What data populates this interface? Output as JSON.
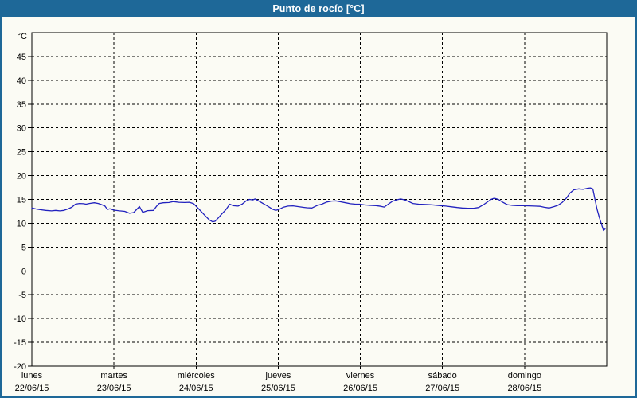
{
  "header": {
    "title": "Punto de rocío [°C]",
    "bg_color": "#1e6898",
    "text_color": "#ffffff"
  },
  "chart_data": {
    "type": "line",
    "title": "Punto de rocío [°C]",
    "grid": "dashed",
    "legend": "none",
    "y_axis": {
      "unit_label": "°C",
      "min": -20,
      "max": 50,
      "tick_step": 5,
      "ticks": [
        45,
        40,
        35,
        30,
        25,
        20,
        15,
        10,
        5,
        0,
        -5,
        -10,
        -15,
        -20
      ]
    },
    "x_axis": {
      "span_days": 7,
      "days": [
        {
          "name": "lunes",
          "date": "22/06/15"
        },
        {
          "name": "martes",
          "date": "23/06/15"
        },
        {
          "name": "miércoles",
          "date": "24/06/15"
        },
        {
          "name": "jueves",
          "date": "25/06/15"
        },
        {
          "name": "viernes",
          "date": "26/06/15"
        },
        {
          "name": "sábado",
          "date": "27/06/15"
        },
        {
          "name": "domingo",
          "date": "28/06/15"
        }
      ]
    },
    "series": [
      {
        "name": "Punto de rocío",
        "color": "#2121be",
        "points": [
          [
            0.0,
            13.2
          ],
          [
            0.05,
            13.0
          ],
          [
            0.1,
            12.85
          ],
          [
            0.17,
            12.7
          ],
          [
            0.24,
            12.6
          ],
          [
            0.29,
            12.7
          ],
          [
            0.34,
            12.6
          ],
          [
            0.39,
            12.7
          ],
          [
            0.44,
            13.0
          ],
          [
            0.49,
            13.4
          ],
          [
            0.53,
            14.0
          ],
          [
            0.58,
            14.15
          ],
          [
            0.63,
            14.1
          ],
          [
            0.66,
            14.0
          ],
          [
            0.7,
            14.15
          ],
          [
            0.76,
            14.3
          ],
          [
            0.81,
            14.15
          ],
          [
            0.85,
            13.9
          ],
          [
            0.89,
            13.6
          ],
          [
            0.92,
            12.9
          ],
          [
            0.95,
            13.05
          ],
          [
            1.0,
            12.75
          ],
          [
            1.07,
            12.6
          ],
          [
            1.13,
            12.5
          ],
          [
            1.19,
            12.1
          ],
          [
            1.24,
            12.25
          ],
          [
            1.31,
            13.5
          ],
          [
            1.35,
            12.3
          ],
          [
            1.41,
            12.65
          ],
          [
            1.48,
            12.7
          ],
          [
            1.52,
            13.6
          ],
          [
            1.55,
            14.15
          ],
          [
            1.6,
            14.3
          ],
          [
            1.67,
            14.35
          ],
          [
            1.72,
            14.55
          ],
          [
            1.79,
            14.4
          ],
          [
            1.86,
            14.35
          ],
          [
            1.92,
            14.4
          ],
          [
            1.97,
            14.1
          ],
          [
            2.01,
            13.4
          ],
          [
            2.06,
            12.5
          ],
          [
            2.11,
            11.6
          ],
          [
            2.16,
            10.7
          ],
          [
            2.2,
            10.3
          ],
          [
            2.23,
            10.4
          ],
          [
            2.27,
            11.1
          ],
          [
            2.31,
            11.9
          ],
          [
            2.36,
            12.8
          ],
          [
            2.41,
            14.0
          ],
          [
            2.45,
            13.7
          ],
          [
            2.51,
            13.6
          ],
          [
            2.56,
            14.0
          ],
          [
            2.61,
            14.7
          ],
          [
            2.65,
            15.0
          ],
          [
            2.69,
            14.9
          ],
          [
            2.72,
            15.1
          ],
          [
            2.77,
            14.6
          ],
          [
            2.82,
            14.1
          ],
          [
            2.88,
            13.5
          ],
          [
            2.93,
            12.95
          ],
          [
            2.97,
            12.7
          ],
          [
            3.01,
            12.9
          ],
          [
            3.06,
            13.35
          ],
          [
            3.12,
            13.6
          ],
          [
            3.18,
            13.65
          ],
          [
            3.24,
            13.5
          ],
          [
            3.3,
            13.35
          ],
          [
            3.35,
            13.25
          ],
          [
            3.41,
            13.2
          ],
          [
            3.47,
            13.7
          ],
          [
            3.53,
            14.0
          ],
          [
            3.59,
            14.45
          ],
          [
            3.65,
            14.65
          ],
          [
            3.7,
            14.7
          ],
          [
            3.76,
            14.5
          ],
          [
            3.82,
            14.3
          ],
          [
            3.88,
            14.1
          ],
          [
            3.94,
            14.0
          ],
          [
            3.99,
            14.0
          ],
          [
            4.05,
            13.85
          ],
          [
            4.12,
            13.75
          ],
          [
            4.19,
            13.7
          ],
          [
            4.25,
            13.55
          ],
          [
            4.29,
            13.4
          ],
          [
            4.34,
            14.0
          ],
          [
            4.39,
            14.6
          ],
          [
            4.44,
            14.9
          ],
          [
            4.49,
            15.1
          ],
          [
            4.54,
            14.9
          ],
          [
            4.59,
            14.55
          ],
          [
            4.64,
            14.15
          ],
          [
            4.71,
            14.0
          ],
          [
            4.78,
            13.95
          ],
          [
            4.85,
            13.9
          ],
          [
            4.91,
            13.8
          ],
          [
            4.97,
            13.7
          ],
          [
            5.04,
            13.6
          ],
          [
            5.11,
            13.45
          ],
          [
            5.18,
            13.3
          ],
          [
            5.24,
            13.2
          ],
          [
            5.31,
            13.15
          ],
          [
            5.38,
            13.15
          ],
          [
            5.44,
            13.3
          ],
          [
            5.5,
            13.9
          ],
          [
            5.55,
            14.5
          ],
          [
            5.59,
            15.0
          ],
          [
            5.63,
            15.25
          ],
          [
            5.68,
            15.0
          ],
          [
            5.73,
            14.45
          ],
          [
            5.79,
            13.9
          ],
          [
            5.85,
            13.75
          ],
          [
            5.91,
            13.7
          ],
          [
            5.98,
            13.7
          ],
          [
            6.05,
            13.65
          ],
          [
            6.12,
            13.6
          ],
          [
            6.19,
            13.55
          ],
          [
            6.24,
            13.35
          ],
          [
            6.3,
            13.2
          ],
          [
            6.36,
            13.5
          ],
          [
            6.41,
            13.8
          ],
          [
            6.46,
            14.4
          ],
          [
            6.51,
            15.3
          ],
          [
            6.55,
            16.3
          ],
          [
            6.6,
            17.0
          ],
          [
            6.66,
            17.2
          ],
          [
            6.71,
            17.1
          ],
          [
            6.76,
            17.3
          ],
          [
            6.8,
            17.4
          ],
          [
            6.83,
            17.2
          ],
          [
            6.85,
            15.6
          ],
          [
            6.88,
            13.1
          ],
          [
            6.91,
            11.2
          ],
          [
            6.94,
            9.6
          ],
          [
            6.96,
            8.5
          ],
          [
            6.98,
            8.8
          ]
        ]
      }
    ],
    "colors": {
      "grid": "#000000",
      "plot_border": "#000000",
      "background": "#fbfbf4"
    }
  }
}
